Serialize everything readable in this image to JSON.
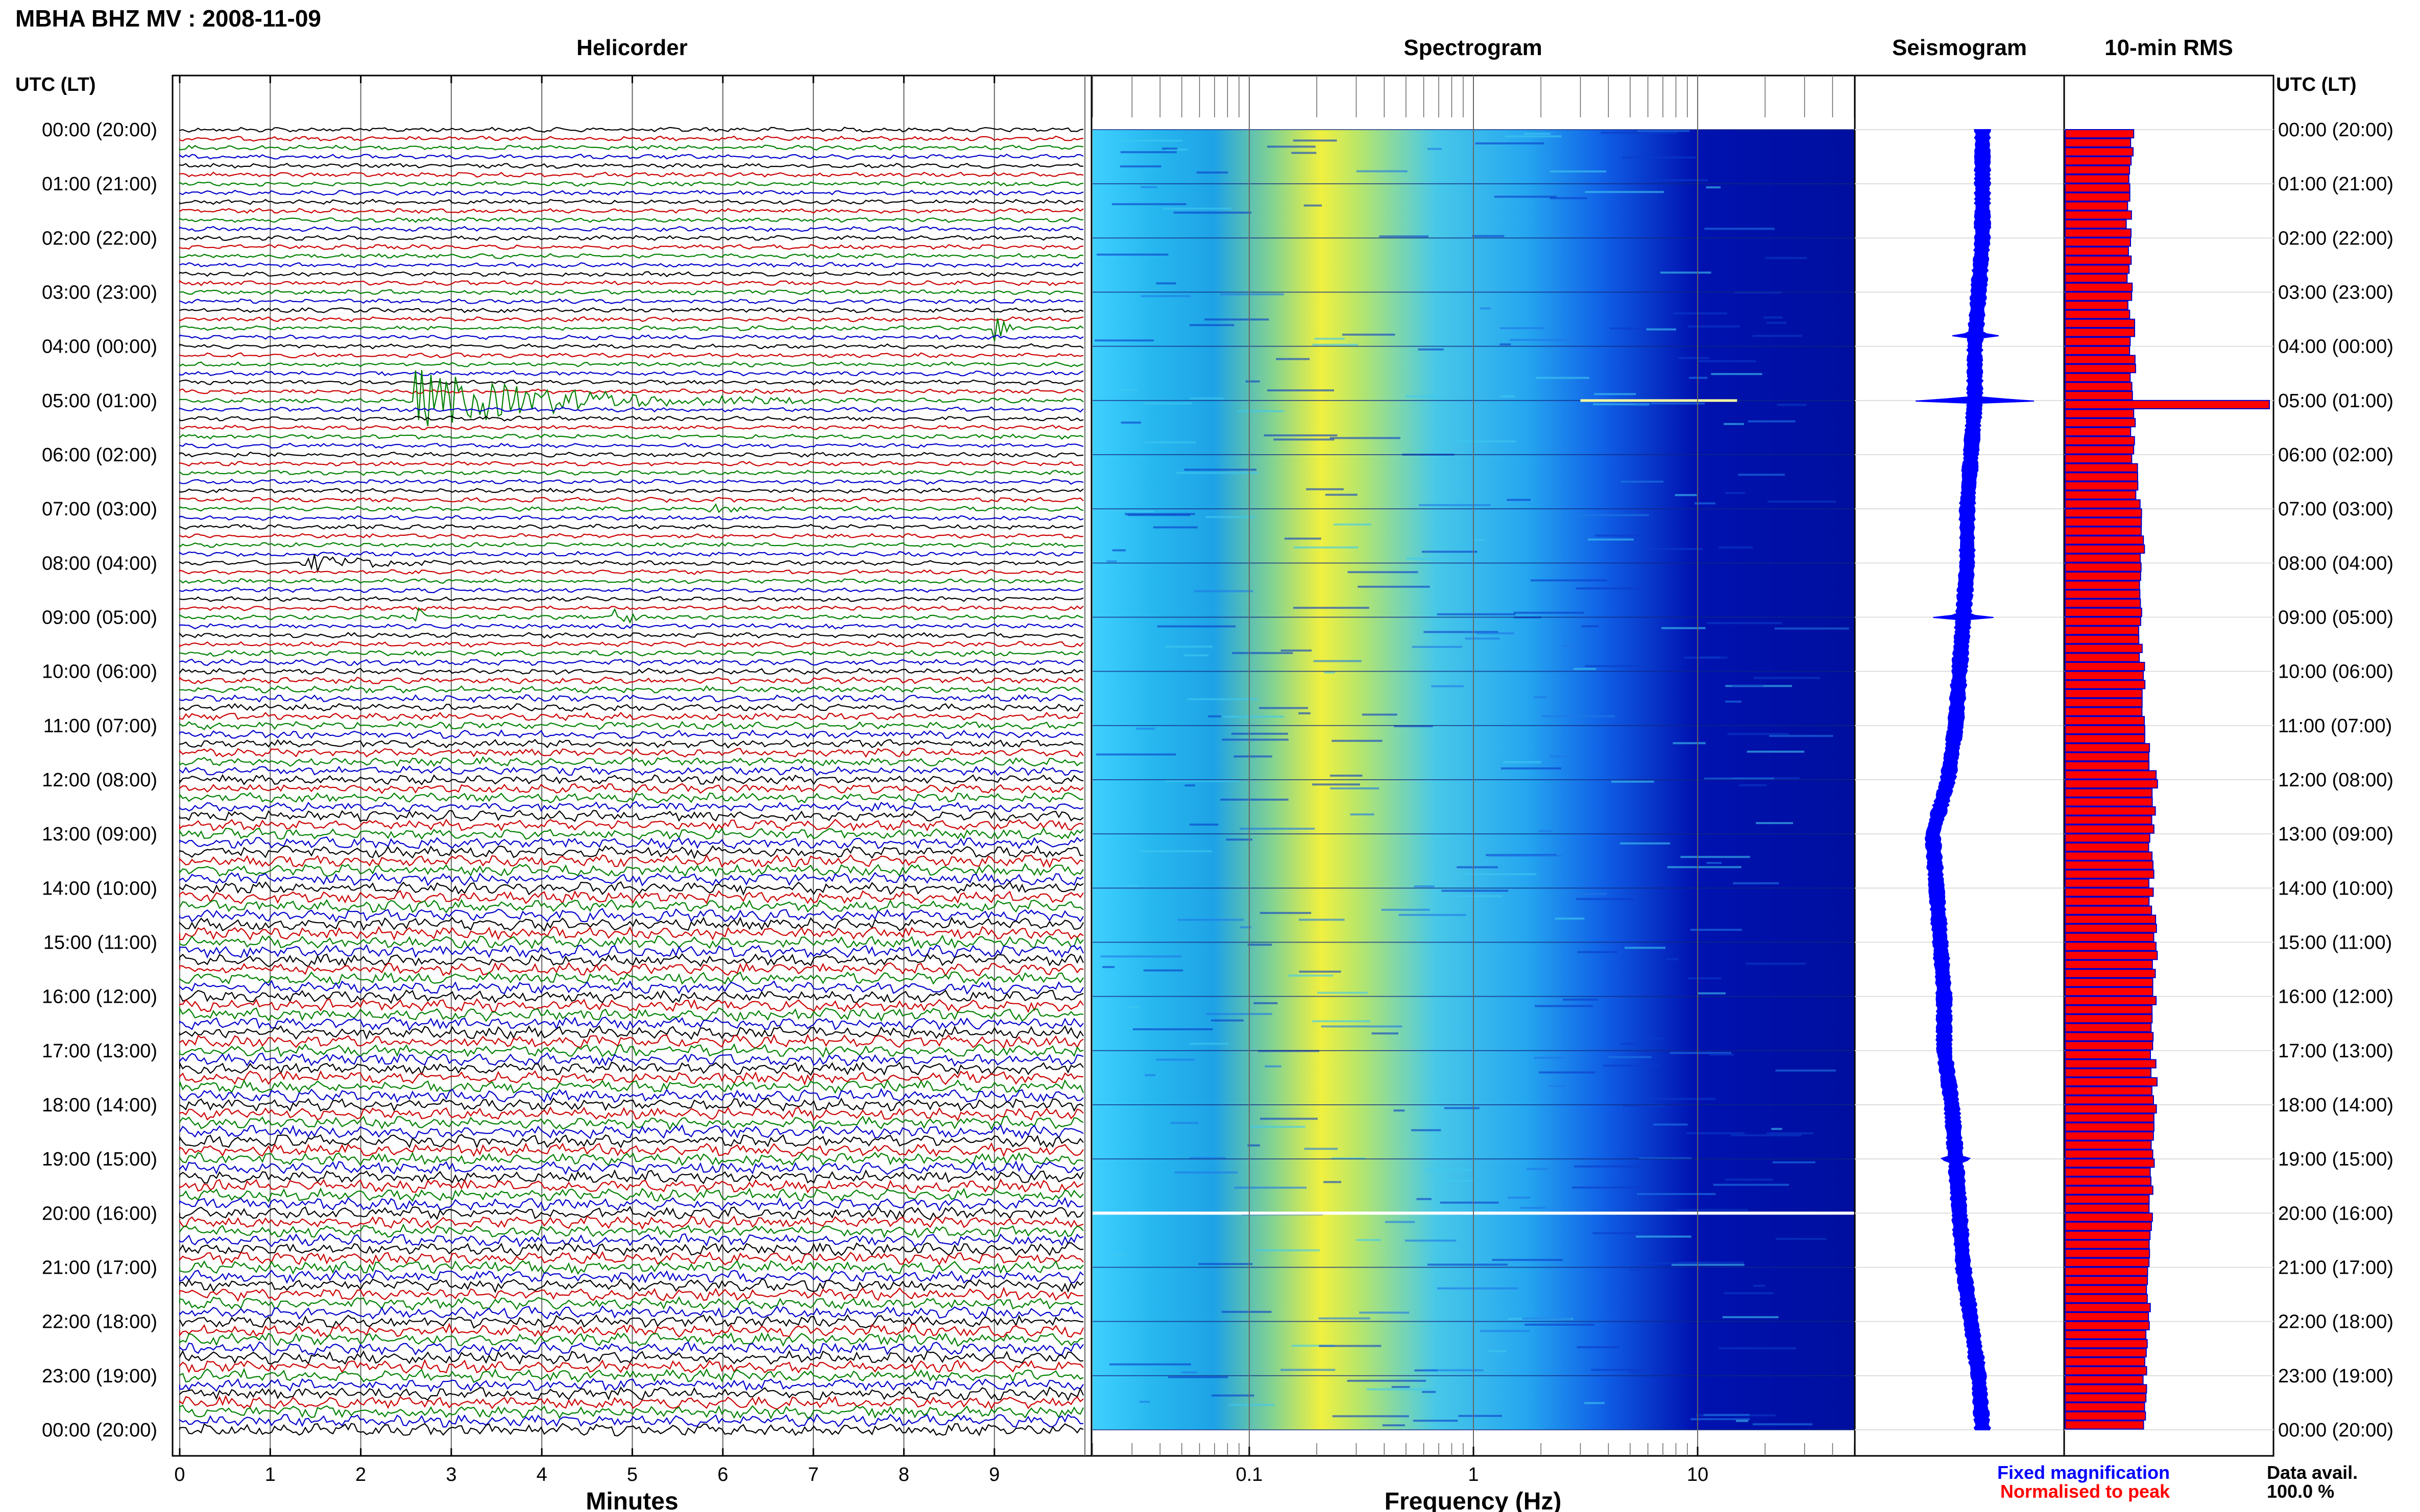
{
  "header": {
    "title": "MBHA BHZ MV : 2008-11-09"
  },
  "panels": {
    "helicorder": {
      "title": "Helicorder",
      "xlabel": "Minutes"
    },
    "spectrogram": {
      "title": "Spectrogram",
      "xlabel": "Frequency (Hz)"
    },
    "seismogram": {
      "title": "Seismogram"
    },
    "rms": {
      "title": "10-min RMS"
    }
  },
  "axis": {
    "left_title": "UTC (LT)",
    "right_title": "UTC (LT)"
  },
  "legend": {
    "fixed": "Fixed magnification",
    "fixed_color": "#0000ff",
    "normalised": "Normalised to peak",
    "normalised_color": "#ff0000"
  },
  "availability": {
    "label": "Data avail.",
    "value": "100.0 %"
  },
  "colors": {
    "trace_cycle": [
      "#000000",
      "#cc0000",
      "#008000",
      "#0000cc"
    ],
    "rms_fill": "#ff0000",
    "rms_edge": "#0000cc",
    "seismogram": "#0000ff"
  },
  "chart_data": [
    {
      "type": "line",
      "title": "Helicorder",
      "xlabel": "Minutes",
      "x_ticks": [
        "0",
        "1",
        "2",
        "3",
        "4",
        "5",
        "6",
        "7",
        "8",
        "9"
      ],
      "xlim": [
        0,
        10
      ],
      "y_ticks": [
        "00:00 (20:00)",
        "01:00 (21:00)",
        "02:00 (22:00)",
        "03:00 (23:00)",
        "04:00 (00:00)",
        "05:00 (01:00)",
        "06:00 (02:00)",
        "07:00 (03:00)",
        "08:00 (04:00)",
        "09:00 (05:00)",
        "10:00 (06:00)",
        "11:00 (07:00)",
        "12:00 (08:00)",
        "13:00 (09:00)",
        "14:00 (10:00)",
        "15:00 (11:00)",
        "16:00 (12:00)",
        "17:00 (13:00)",
        "18:00 (14:00)",
        "19:00 (15:00)",
        "20:00 (16:00)",
        "21:00 (17:00)",
        "22:00 (18:00)",
        "23:00 (19:00)",
        "00:00 (20:00)"
      ],
      "lines_per_hour": 6,
      "events": [
        {
          "hour": 3.67,
          "minute_start": 9.0,
          "minute_end": 9.4,
          "amplitude": 0.4
        },
        {
          "hour": 5.0,
          "minute_start": 2.6,
          "minute_end": 7.0,
          "amplitude": 1.0
        },
        {
          "hour": 7.0,
          "minute_start": 5.8,
          "minute_end": 6.2,
          "amplitude": 0.3
        },
        {
          "hour": 8.0,
          "minute_start": 1.4,
          "minute_end": 3.0,
          "amplitude": 0.3
        },
        {
          "hour": 9.0,
          "minute_start": 2.6,
          "minute_end": 2.8,
          "amplitude": 0.5
        },
        {
          "hour": 9.0,
          "minute_start": 4.8,
          "minute_end": 5.1,
          "amplitude": 0.6
        }
      ]
    },
    {
      "type": "heatmap",
      "title": "Spectrogram",
      "xlabel": "Frequency (Hz)",
      "x_scale": "log",
      "x_ticks": [
        "0.1",
        "1",
        "10"
      ],
      "xlim": [
        0.02,
        50
      ],
      "peak_band_hz": [
        0.15,
        0.4
      ],
      "strong_lines_hour": [
        5.0,
        20.0
      ]
    },
    {
      "type": "line",
      "title": "Seismogram",
      "envelope_hours": [
        0,
        1,
        2,
        3,
        4,
        5,
        6,
        7,
        8,
        9,
        10,
        11,
        12,
        13,
        14,
        15,
        16,
        17,
        18,
        19,
        20,
        21,
        22,
        23,
        24
      ],
      "center_offset": [
        0.3,
        0.3,
        0.3,
        0.25,
        0.2,
        0.2,
        0.15,
        0.1,
        0.1,
        0.05,
        0.0,
        -0.05,
        -0.15,
        -0.35,
        -0.3,
        -0.25,
        -0.2,
        -0.2,
        -0.1,
        -0.05,
        0.0,
        0.05,
        0.15,
        0.25,
        0.3
      ],
      "spikes": [
        {
          "hour": 3.8,
          "amplitude": 0.25
        },
        {
          "hour": 5.0,
          "amplitude": 1.0
        },
        {
          "hour": 9.0,
          "amplitude": 0.35
        },
        {
          "hour": 19.0,
          "amplitude": 0.15
        }
      ]
    },
    {
      "type": "bar",
      "title": "10-min RMS",
      "orientation": "horizontal",
      "bars_per_hour": 6,
      "hourly_level": [
        0.33,
        0.31,
        0.31,
        0.32,
        0.33,
        0.33,
        0.34,
        0.37,
        0.38,
        0.37,
        0.38,
        0.39,
        0.44,
        0.42,
        0.42,
        0.44,
        0.44,
        0.43,
        0.44,
        0.43,
        0.42,
        0.41,
        0.4,
        0.39,
        0.38
      ],
      "spike": {
        "hour": 5.0,
        "value": 1.0
      }
    }
  ]
}
